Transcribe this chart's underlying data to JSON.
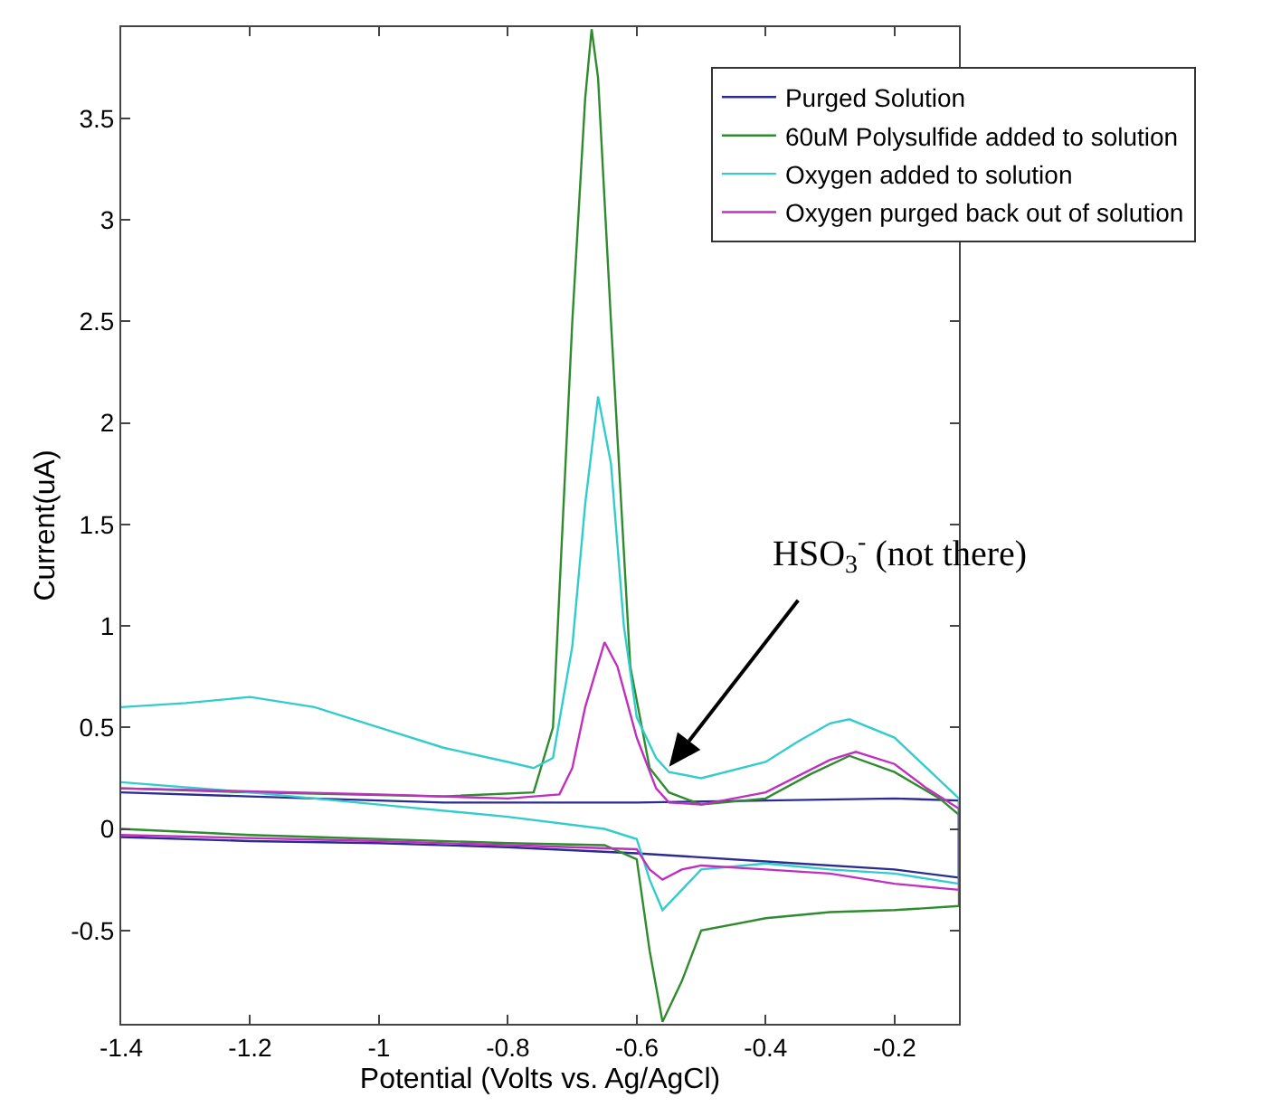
{
  "chart_data": {
    "type": "line",
    "xlabel": "Potential (Volts vs. Ag/AgCl)",
    "ylabel": "Current(uA)",
    "xlim": [
      -1.4,
      -0.1
    ],
    "ylim": [
      -0.96,
      3.95
    ],
    "xticks": [
      -1.4,
      -1.2,
      -1,
      -0.8,
      -0.6,
      -0.4,
      -0.2
    ],
    "yticks": [
      -0.5,
      0,
      0.5,
      1,
      1.5,
      2,
      2.5,
      3,
      3.5
    ],
    "grid": false,
    "legend": "top right",
    "line_style": "solid",
    "marker": "none",
    "annotations": [
      "HSO$_{3}$$^{-}$ (not there)"
    ],
    "series": [
      {
        "name": "Purged Solution",
        "color": "#2b2b90",
        "x": [
          -1.4,
          -1.2,
          -1.0,
          -0.9,
          -0.8,
          -0.6,
          -0.4,
          -0.2,
          -0.1,
          -0.1,
          -0.2,
          -0.4,
          -0.6,
          -0.8,
          -1.0,
          -1.2,
          -1.4
        ],
        "values": [
          0.18,
          0.16,
          0.14,
          0.13,
          0.13,
          0.13,
          0.14,
          0.15,
          0.14,
          -0.24,
          -0.2,
          -0.16,
          -0.12,
          -0.09,
          -0.07,
          -0.06,
          -0.04
        ]
      },
      {
        "name": "60uM Polysulfide added to solution",
        "color": "#2e8b2e",
        "x": [
          -1.4,
          -1.2,
          -0.9,
          -0.76,
          -0.73,
          -0.7,
          -0.68,
          -0.67,
          -0.66,
          -0.64,
          -0.61,
          -0.58,
          -0.55,
          -0.5,
          -0.4,
          -0.33,
          -0.27,
          -0.2,
          -0.13,
          -0.1,
          -0.1,
          -0.2,
          -0.3,
          -0.4,
          -0.5,
          -0.53,
          -0.56,
          -0.58,
          -0.6,
          -0.65,
          -0.8,
          -1.0,
          -1.2,
          -1.4
        ],
        "values": [
          0.2,
          0.18,
          0.16,
          0.18,
          0.5,
          2.5,
          3.6,
          3.94,
          3.7,
          2.5,
          0.8,
          0.3,
          0.18,
          0.12,
          0.15,
          0.27,
          0.36,
          0.28,
          0.15,
          0.07,
          -0.38,
          -0.4,
          -0.41,
          -0.44,
          -0.5,
          -0.75,
          -0.95,
          -0.6,
          -0.15,
          -0.08,
          -0.07,
          -0.05,
          -0.03,
          0.0
        ]
      },
      {
        "name": "Oxygen added to solution",
        "color": "#33cccc",
        "x": [
          -1.4,
          -1.3,
          -1.2,
          -1.1,
          -1.0,
          -0.9,
          -0.8,
          -0.76,
          -0.73,
          -0.7,
          -0.68,
          -0.66,
          -0.64,
          -0.62,
          -0.6,
          -0.57,
          -0.55,
          -0.5,
          -0.4,
          -0.35,
          -0.3,
          -0.27,
          -0.2,
          -0.15,
          -0.1,
          -0.1,
          -0.2,
          -0.3,
          -0.4,
          -0.5,
          -0.53,
          -0.56,
          -0.58,
          -0.6,
          -0.65,
          -0.8,
          -1.0,
          -1.2,
          -1.4
        ],
        "values": [
          0.6,
          0.62,
          0.65,
          0.6,
          0.5,
          0.4,
          0.33,
          0.3,
          0.35,
          0.9,
          1.6,
          2.13,
          1.8,
          1.0,
          0.55,
          0.35,
          0.28,
          0.25,
          0.33,
          0.43,
          0.52,
          0.54,
          0.45,
          0.3,
          0.15,
          -0.27,
          -0.22,
          -0.2,
          -0.17,
          -0.2,
          -0.3,
          -0.4,
          -0.25,
          -0.05,
          0.0,
          0.06,
          0.12,
          0.18,
          0.23
        ]
      },
      {
        "name": "Oxygen purged back out of solution",
        "color": "#c030c0",
        "x": [
          -1.4,
          -1.0,
          -0.8,
          -0.72,
          -0.7,
          -0.68,
          -0.65,
          -0.63,
          -0.6,
          -0.57,
          -0.55,
          -0.5,
          -0.4,
          -0.3,
          -0.26,
          -0.2,
          -0.15,
          -0.1,
          -0.1,
          -0.2,
          -0.3,
          -0.4,
          -0.5,
          -0.53,
          -0.56,
          -0.58,
          -0.6,
          -0.8,
          -1.0,
          -1.4
        ],
        "values": [
          0.2,
          0.17,
          0.15,
          0.17,
          0.3,
          0.6,
          0.92,
          0.8,
          0.45,
          0.2,
          0.13,
          0.12,
          0.18,
          0.34,
          0.38,
          0.32,
          0.2,
          0.1,
          -0.3,
          -0.27,
          -0.22,
          -0.2,
          -0.18,
          -0.2,
          -0.25,
          -0.2,
          -0.1,
          -0.08,
          -0.06,
          -0.03
        ]
      }
    ]
  }
}
